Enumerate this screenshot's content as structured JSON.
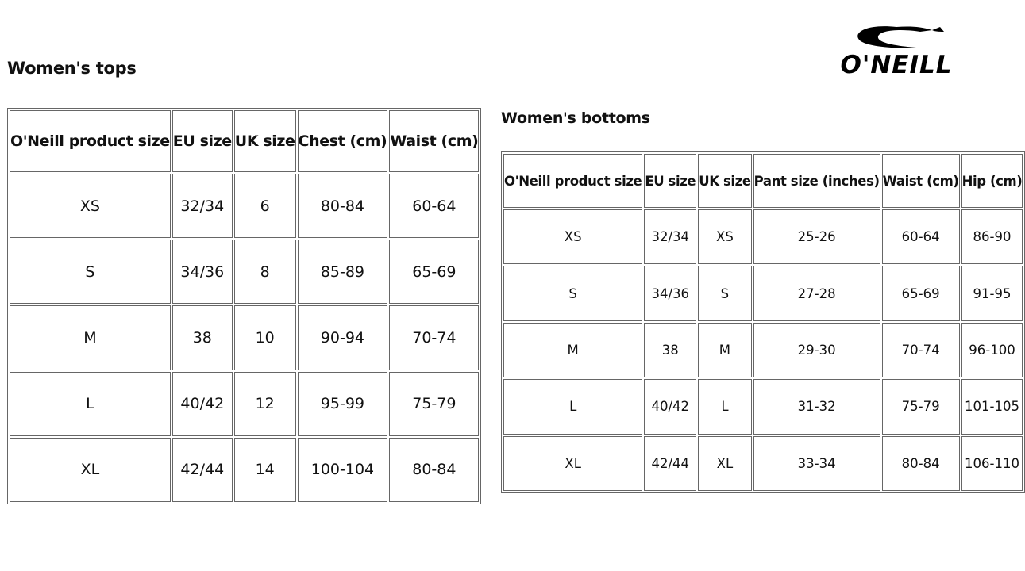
{
  "brand": {
    "logo_text": "O'NEILL"
  },
  "tops": {
    "title": "Women's tops",
    "headers": [
      "O'Neill product size",
      "EU size",
      "UK size",
      "Chest (cm)",
      "Waist (cm)"
    ],
    "rows": [
      [
        "XS",
        "32/34",
        "6",
        "80-84",
        "60-64"
      ],
      [
        "S",
        "34/36",
        "8",
        "85-89",
        "65-69"
      ],
      [
        "M",
        "38",
        "10",
        "90-94",
        "70-74"
      ],
      [
        "L",
        "40/42",
        "12",
        "95-99",
        "75-79"
      ],
      [
        "XL",
        "42/44",
        "14",
        "100-104",
        "80-84"
      ]
    ]
  },
  "bottoms": {
    "title": "Women's bottoms",
    "headers": [
      "O'Neill product size",
      "EU size",
      "UK size",
      "Pant size (inches)",
      "Waist (cm)",
      "Hip (cm)"
    ],
    "rows": [
      [
        "XS",
        "32/34",
        "XS",
        "25-26",
        "60-64",
        "86-90"
      ],
      [
        "S",
        "34/36",
        "S",
        "27-28",
        "65-69",
        "91-95"
      ],
      [
        "M",
        "38",
        "M",
        "29-30",
        "70-74",
        "96-100"
      ],
      [
        "L",
        "40/42",
        "L",
        "31-32",
        "75-79",
        "101-105"
      ],
      [
        "XL",
        "42/44",
        "XL",
        "33-34",
        "80-84",
        "106-110"
      ]
    ]
  }
}
